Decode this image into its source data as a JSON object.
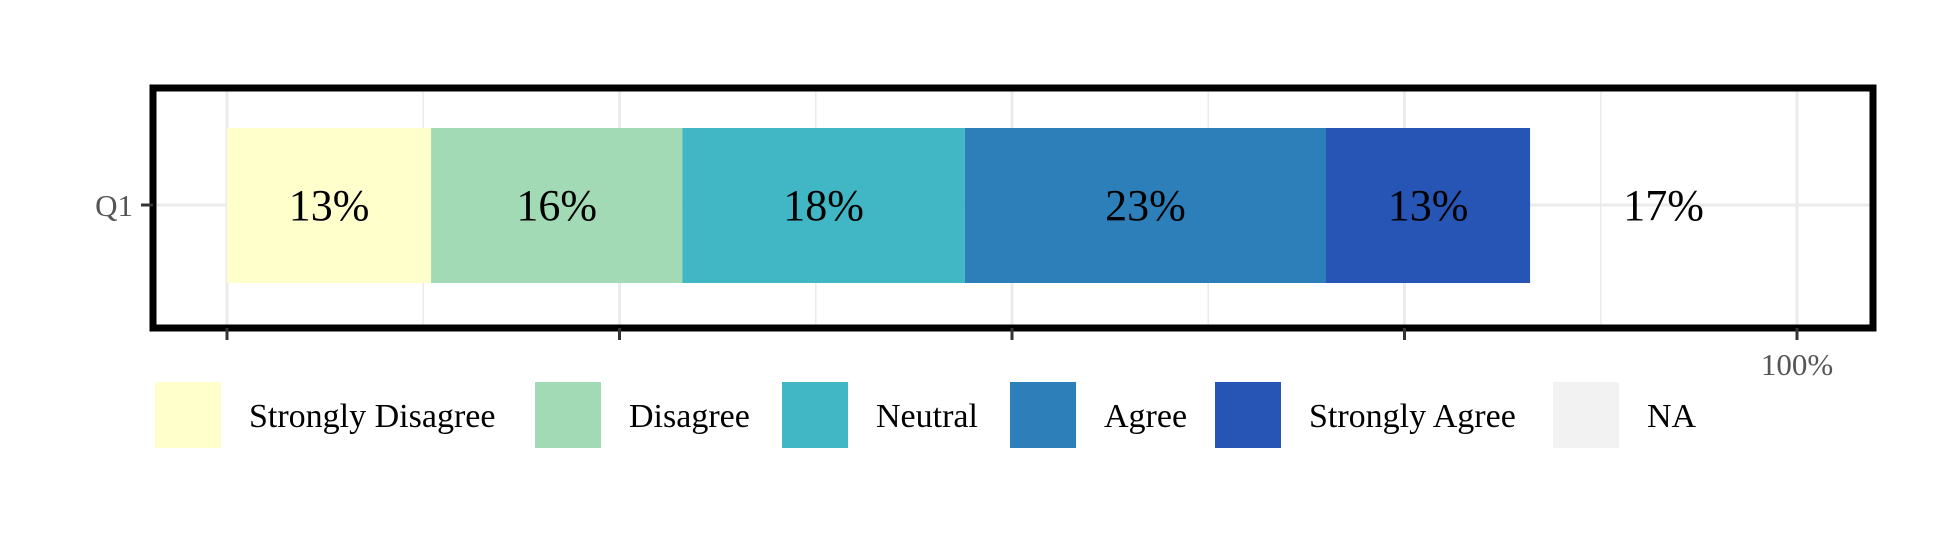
{
  "chart_data": {
    "type": "bar",
    "orientation": "horizontal",
    "stacked": true,
    "categories": [
      "Q1"
    ],
    "series": [
      {
        "name": "Strongly Disagree",
        "values": [
          13
        ],
        "label": "13%",
        "color": "#FFFFCC"
      },
      {
        "name": "Disagree",
        "values": [
          16
        ],
        "label": "16%",
        "color": "#A1DAB4"
      },
      {
        "name": "Neutral",
        "values": [
          18
        ],
        "label": "18%",
        "color": "#41B6C4"
      },
      {
        "name": "Agree",
        "values": [
          23
        ],
        "label": "23%",
        "color": "#2C7FB8"
      },
      {
        "name": "Strongly Agree",
        "values": [
          13
        ],
        "label": "13%",
        "color": "#2655B5"
      },
      {
        "name": "NA",
        "values": [
          17
        ],
        "label": "17%",
        "color": "#F2F2F2"
      }
    ],
    "xlim": [
      0,
      100
    ],
    "x_ticks": [
      0,
      25,
      50,
      75,
      100
    ],
    "x_tick_labels": [
      "",
      "",
      "",
      "",
      "100%"
    ],
    "title": "",
    "xlabel": "",
    "ylabel": "",
    "grid": true,
    "legend_position": "bottom",
    "panel_border_color": "#000000",
    "grid_color": "#EBEBEB",
    "text_color": "#000000",
    "tick_color": "#555555"
  }
}
